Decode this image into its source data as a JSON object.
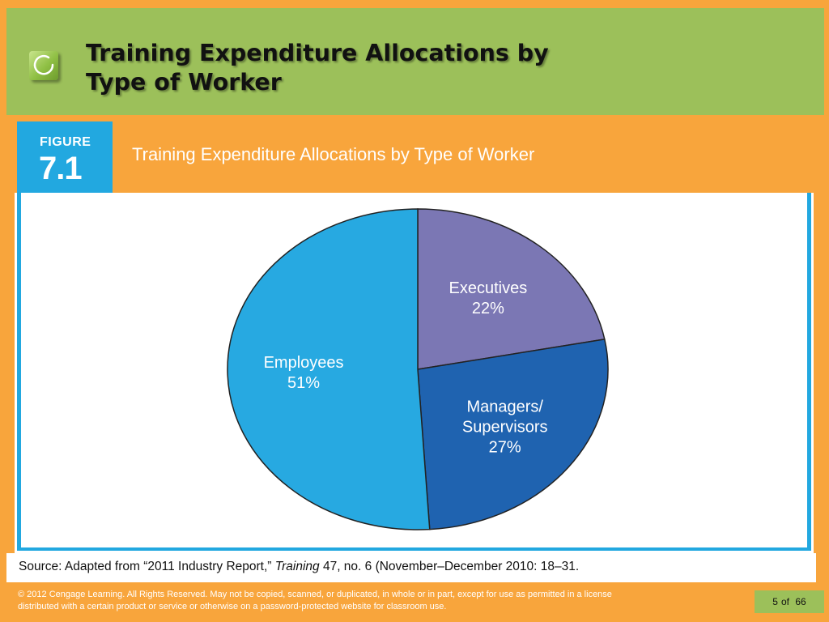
{
  "slide": {
    "title": "Training Expenditure Allocations by\nType of Worker"
  },
  "figure": {
    "label": "FIGURE",
    "number": "7.1",
    "title": "Training Expenditure Allocations by Type of Worker"
  },
  "chart_data": {
    "type": "pie",
    "title": "Training Expenditure Allocations by Type of Worker",
    "slices": [
      {
        "label": "Executives",
        "label_lines": [
          "Executives"
        ],
        "value": 22,
        "value_label": "22%",
        "color": "#7b77b4"
      },
      {
        "label": "Managers/ Supervisors",
        "label_lines": [
          "Managers/",
          "Supervisors"
        ],
        "value": 27,
        "value_label": "27%",
        "color": "#1f63b0"
      },
      {
        "label": "Employees",
        "label_lines": [
          "Employees"
        ],
        "value": 51,
        "value_label": "51%",
        "color": "#27a9e1"
      }
    ],
    "start": "12 o'clock",
    "direction": "clockwise"
  },
  "source": {
    "prefix": "Source: Adapted from “2011 Industry Report,” ",
    "journal": "Training",
    "suffix": " 47, no. 6 (November–December 2010: 18–31."
  },
  "footer": {
    "copyright": "© 2012 Cengage Learning. All Rights Reserved. May not be copied, scanned, or duplicated, in whole or in part, except for use as permitted in a license distributed with a certain product or service or otherwise on a password-protected website for classroom use."
  },
  "pagination": {
    "current": "5",
    "of_label": "of",
    "total": "66"
  },
  "colors": {
    "background": "#f8a53c",
    "title_bar": "#9cc05a",
    "figure_blue": "#22a8e0"
  }
}
